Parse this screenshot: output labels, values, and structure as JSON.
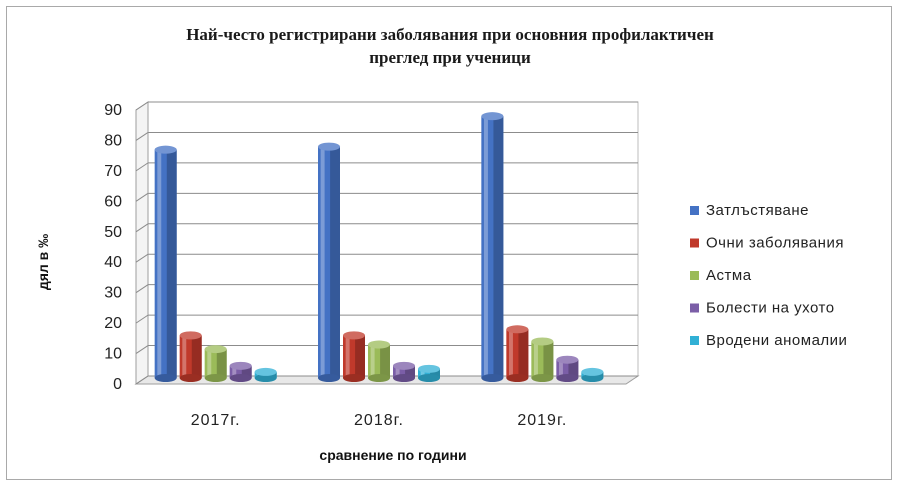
{
  "chart_data": {
    "type": "bar",
    "title_lines": [
      "Най-често регистрирани заболявания при основния профилактичен",
      "преглед при ученици"
    ],
    "xlabel": "сравнение по години",
    "ylabel": "дял в ‰",
    "ylim": [
      0,
      90
    ],
    "yticks": [
      "0",
      "10",
      "20",
      "30",
      "40",
      "50",
      "60",
      "70",
      "80",
      "90"
    ],
    "categories": [
      "2017г.",
      "2018г.",
      "2019г."
    ],
    "series": [
      {
        "name": "Затлъстяване",
        "values": [
          75,
          76,
          86
        ],
        "color": "#4472c4"
      },
      {
        "name": "Очни заболявания",
        "values": [
          14,
          14,
          16
        ],
        "color": "#c0392b"
      },
      {
        "name": "Астма",
        "values": [
          9.5,
          11,
          12
        ],
        "color": "#9bbb59"
      },
      {
        "name": "Болести на ухото",
        "values": [
          4,
          4,
          6
        ],
        "color": "#7b5ea7"
      },
      {
        "name": "Вродени аномалии",
        "values": [
          2,
          3,
          2
        ],
        "color": "#31b0d5"
      }
    ],
    "grid": true,
    "legend_position": "right"
  }
}
